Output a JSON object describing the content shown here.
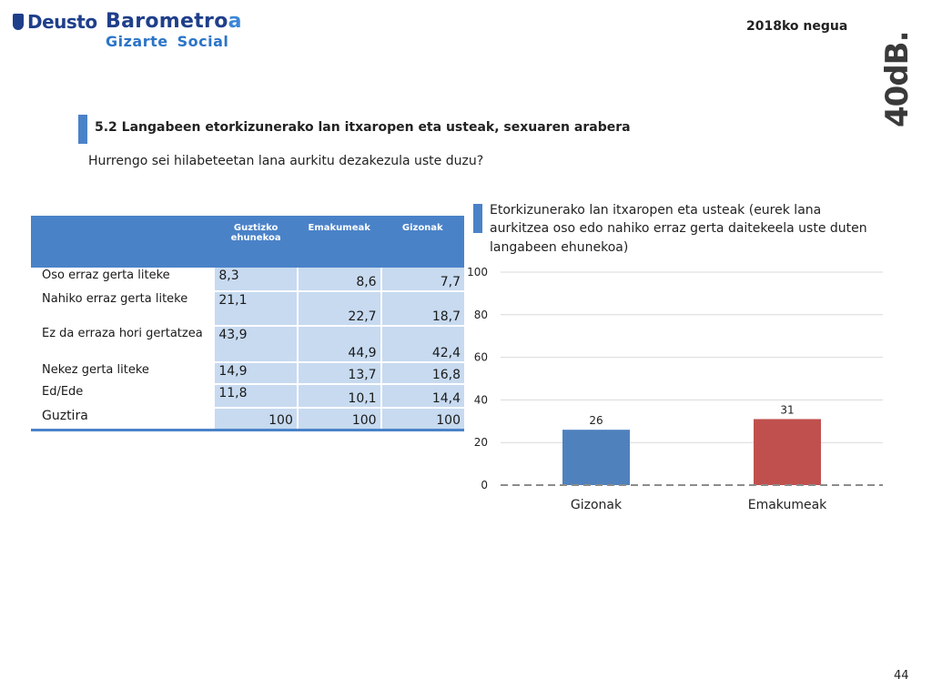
{
  "header": {
    "deusto_logo": "Deusto",
    "barometer_title": "Barometro",
    "barometer_title_accent": "a",
    "barometer_sub_1": "Gizarte",
    "barometer_sub_2": "Social",
    "date": "2018ko negua",
    "brand": "40dB."
  },
  "section": {
    "title": "5.2 Langabeen etorkizunerako lan itxaropen eta usteak, sexuaren arabera",
    "question": "Hurrengo sei hilabeteetan lana aurkitu dezakezula uste duzu?"
  },
  "table": {
    "headers": [
      "",
      "Guztizko ehunekoa",
      "Emakumeak",
      "Gizonak"
    ],
    "rows": [
      {
        "label": "Oso erraz gerta liteke",
        "values": [
          "8,3",
          "8,6",
          "7,7"
        ]
      },
      {
        "label": "Nahiko erraz gerta liteke",
        "values": [
          "21,1",
          "22,7",
          "18,7"
        ]
      },
      {
        "label": "Ez da erraza hori gertatzea",
        "values": [
          "43,9",
          "44,9",
          "42,4"
        ]
      },
      {
        "label": "Nekez gerta liteke",
        "values": [
          "14,9",
          "13,7",
          "16,8"
        ]
      },
      {
        "label": "Ed/Ede",
        "values": [
          "11,8",
          "10,1",
          "14,4"
        ]
      },
      {
        "label": "Guztira",
        "values": [
          "100",
          "100",
          "100"
        ]
      }
    ]
  },
  "chart_data": {
    "type": "bar",
    "title": "Etorkizunerako lan itxaropen eta usteak (eurek lana aurkitzea oso edo nahiko erraz gerta daitekeela uste duten langabeen ehunekoa)",
    "categories": [
      "Gizonak",
      "Emakumeak"
    ],
    "values": [
      26,
      31
    ],
    "data_labels": [
      "26",
      "31"
    ],
    "colors": [
      "#4f81bd",
      "#c0504d"
    ],
    "ylim": [
      0,
      100
    ],
    "yticks": [
      0,
      20,
      40,
      60,
      80,
      100
    ],
    "grid": true,
    "baseline_dashed": true,
    "xlabel": "",
    "ylabel": ""
  },
  "footer": {
    "page_number": "44"
  },
  "colors": {
    "accent": "#4a82c8",
    "table_cell": "#c7daf0",
    "logo_blue": "#1f3f8a"
  }
}
